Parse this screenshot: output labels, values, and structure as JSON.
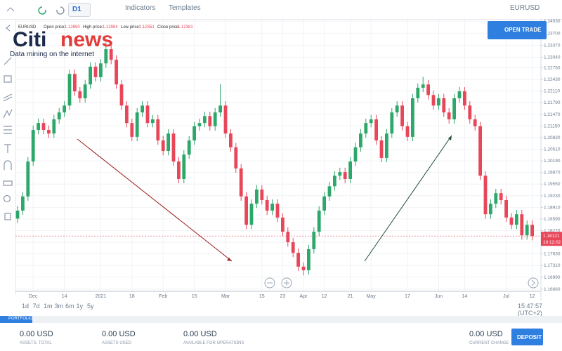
{
  "toolbar": {
    "timeframe": "D1",
    "indicators": "Indicators",
    "templates": "Templates",
    "symbol": "EURUSD",
    "open_trade": "OPEN TRADE"
  },
  "info": {
    "symbol": "EURUSD",
    "open_label": "Open price:",
    "open": "1.12850",
    "high_label": "High price:",
    "high": "1.12984",
    "low_label": "Low price:",
    "low": "1.12351",
    "close_label": "Close price:",
    "close": "1.12381"
  },
  "logo": {
    "brand1": "Citi",
    "brand2": "news",
    "tagline": "Data mining on the internet"
  },
  "ranges": [
    "1d",
    "7d",
    "1m",
    "3m",
    "6m",
    "1y",
    "5y"
  ],
  "clock": "15:47:57 (UTC+2)",
  "portfolio": "PORTFOLIO",
  "footer": {
    "items": [
      {
        "value": "0.00 USD",
        "label": "ASSETS, TOTAL"
      },
      {
        "value": "0.00 USD",
        "label": "ASSETS USED"
      },
      {
        "value": "0.00 USD",
        "label": "AVAILABLE FOR OPERATIONS"
      },
      {
        "value": "0.00 USD",
        "label": "CURRENT CHANGE"
      }
    ],
    "deposit": "DEPOSIT"
  },
  "chart_data": {
    "type": "candlestick",
    "up_color": "#2ea86a",
    "down_color": "#e8475a",
    "grid": true,
    "ylim": [
      1.166,
      1.2413
    ],
    "yticks": [
      {
        "value": 1.2403,
        "label": "1.24030"
      },
      {
        "value": 1.237,
        "label": "1.23700"
      },
      {
        "value": 1.2337,
        "label": "1.23370"
      },
      {
        "value": 1.2304,
        "label": "1.23040"
      },
      {
        "value": 1.2275,
        "label": "1.22750"
      },
      {
        "value": 1.2243,
        "label": "1.22430"
      },
      {
        "value": 1.2211,
        "label": "1.22110"
      },
      {
        "value": 1.2179,
        "label": "1.21790"
      },
      {
        "value": 1.2147,
        "label": "1.21470"
      },
      {
        "value": 1.2115,
        "label": "1.21150"
      },
      {
        "value": 1.2083,
        "label": "1.20830"
      },
      {
        "value": 1.2051,
        "label": "1.20510"
      },
      {
        "value": 1.2019,
        "label": "1.20190"
      },
      {
        "value": 1.1987,
        "label": "1.19870"
      },
      {
        "value": 1.1955,
        "label": "1.19550"
      },
      {
        "value": 1.1923,
        "label": "1.19230"
      },
      {
        "value": 1.1891,
        "label": "1.18910"
      },
      {
        "value": 1.1859,
        "label": "1.18590"
      },
      {
        "value": 1.1827,
        "label": "1.18270"
      },
      {
        "value": 1.1795,
        "label": "1.17950"
      },
      {
        "value": 1.1763,
        "label": "1.17630"
      },
      {
        "value": 1.1731,
        "label": "1.17310"
      },
      {
        "value": 1.1699,
        "label": "1.16990"
      },
      {
        "value": 1.1666,
        "label": "1.16660"
      }
    ],
    "last_price": {
      "value": 1.18121,
      "label": "1.18121"
    },
    "timer": "10:12:02",
    "categories": [
      null,
      null,
      null,
      "Dec",
      null,
      null,
      null,
      null,
      null,
      "14",
      null,
      null,
      null,
      null,
      null,
      null,
      "2021",
      null,
      null,
      null,
      null,
      null,
      "18",
      null,
      null,
      null,
      null,
      null,
      "Feb",
      null,
      null,
      null,
      null,
      null,
      "15",
      null,
      null,
      null,
      null,
      null,
      "Mar",
      null,
      null,
      null,
      null,
      null,
      null,
      "15",
      null,
      null,
      null,
      "23",
      null,
      null,
      null,
      "Apr",
      null,
      null,
      null,
      "12",
      null,
      null,
      null,
      null,
      "21",
      null,
      null,
      null,
      "May",
      null,
      null,
      null,
      null,
      null,
      null,
      "17",
      null,
      null,
      null,
      null,
      null,
      "Jun",
      null,
      null,
      null,
      null,
      "14",
      null,
      null,
      null,
      null,
      null,
      null,
      null,
      "Jul",
      null,
      null,
      null,
      null,
      "12"
    ],
    "candles": [
      [
        1.186,
        1.1894,
        1.1848,
        1.1882
      ],
      [
        1.1882,
        1.1933,
        1.187,
        1.1921
      ],
      [
        1.1921,
        1.2029,
        1.1909,
        1.2017
      ],
      [
        1.2017,
        1.2116,
        1.2005,
        1.2104
      ],
      [
        1.2104,
        1.2135,
        1.2092,
        1.2123
      ],
      [
        1.2123,
        1.2135,
        1.2092,
        1.2104
      ],
      [
        1.2104,
        1.2116,
        1.2082,
        1.2094
      ],
      [
        1.2094,
        1.2145,
        1.2082,
        1.2133
      ],
      [
        1.2133,
        1.2164,
        1.2121,
        1.2152
      ],
      [
        1.2152,
        1.2183,
        1.214,
        1.2171
      ],
      [
        1.2171,
        1.227,
        1.2159,
        1.2258
      ],
      [
        1.2258,
        1.227,
        1.2198,
        1.221
      ],
      [
        1.221,
        1.2222,
        1.2179,
        1.2191
      ],
      [
        1.2191,
        1.2241,
        1.2179,
        1.2229
      ],
      [
        1.2229,
        1.229,
        1.2217,
        1.2278
      ],
      [
        1.2278,
        1.229,
        1.2237,
        1.2249
      ],
      [
        1.2249,
        1.2299,
        1.2237,
        1.2287
      ],
      [
        1.2287,
        1.2345,
        1.2275,
        1.2326
      ],
      [
        1.2326,
        1.2338,
        1.2285,
        1.2297
      ],
      [
        1.2297,
        1.2309,
        1.2217,
        1.2229
      ],
      [
        1.2229,
        1.2241,
        1.2159,
        1.2171
      ],
      [
        1.2171,
        1.2183,
        1.2111,
        1.2123
      ],
      [
        1.2123,
        1.2135,
        1.2073,
        1.2085
      ],
      [
        1.2085,
        1.2164,
        1.2073,
        1.2152
      ],
      [
        1.2152,
        1.2183,
        1.214,
        1.2171
      ],
      [
        1.2171,
        1.2183,
        1.2111,
        1.2123
      ],
      [
        1.2123,
        1.2145,
        1.2111,
        1.2133
      ],
      [
        1.2133,
        1.2145,
        1.2063,
        1.2075
      ],
      [
        1.2075,
        1.2087,
        1.2034,
        1.2046
      ],
      [
        1.2046,
        1.2106,
        1.2034,
        1.2094
      ],
      [
        1.2094,
        1.2106,
        1.2005,
        1.2017
      ],
      [
        1.2017,
        1.2029,
        1.1957,
        1.1969
      ],
      [
        1.1969,
        1.2048,
        1.1957,
        1.2036
      ],
      [
        1.2036,
        1.2087,
        1.2024,
        1.2075
      ],
      [
        1.2075,
        1.2126,
        1.2063,
        1.2114
      ],
      [
        1.2114,
        1.2135,
        1.2102,
        1.2123
      ],
      [
        1.2123,
        1.2154,
        1.2111,
        1.2142
      ],
      [
        1.2142,
        1.2154,
        1.2102,
        1.2114
      ],
      [
        1.2114,
        1.2164,
        1.2102,
        1.2152
      ],
      [
        1.2152,
        1.223,
        1.214,
        1.2171
      ],
      [
        1.2171,
        1.2183,
        1.2082,
        1.2094
      ],
      [
        1.2094,
        1.2106,
        1.2044,
        1.2056
      ],
      [
        1.2056,
        1.2068,
        1.1986,
        1.1998
      ],
      [
        1.1998,
        1.201,
        1.1909,
        1.1921
      ],
      [
        1.1921,
        1.1933,
        1.1831,
        1.1843
      ],
      [
        1.1843,
        1.1913,
        1.1831,
        1.1901
      ],
      [
        1.1901,
        1.1952,
        1.1889,
        1.194
      ],
      [
        1.194,
        1.1952,
        1.1899,
        1.1911
      ],
      [
        1.1911,
        1.1923,
        1.187,
        1.1882
      ],
      [
        1.1882,
        1.1913,
        1.187,
        1.1901
      ],
      [
        1.1901,
        1.1913,
        1.1851,
        1.1863
      ],
      [
        1.1863,
        1.1875,
        1.1812,
        1.1824
      ],
      [
        1.1824,
        1.1836,
        1.1783,
        1.1795
      ],
      [
        1.1795,
        1.1807,
        1.1754,
        1.1766
      ],
      [
        1.1766,
        1.1778,
        1.1716,
        1.1728
      ],
      [
        1.1728,
        1.174,
        1.1704,
        1.1718
      ],
      [
        1.1718,
        1.1788,
        1.1706,
        1.1776
      ],
      [
        1.1776,
        1.1836,
        1.1764,
        1.1824
      ],
      [
        1.1824,
        1.1894,
        1.1812,
        1.1882
      ],
      [
        1.1882,
        1.1933,
        1.187,
        1.1921
      ],
      [
        1.1921,
        1.1961,
        1.1909,
        1.1949
      ],
      [
        1.1949,
        1.199,
        1.1937,
        1.1978
      ],
      [
        1.1978,
        1.2,
        1.1966,
        1.1988
      ],
      [
        1.1988,
        1.2,
        1.1957,
        1.1969
      ],
      [
        1.1969,
        1.2029,
        1.1957,
        1.2017
      ],
      [
        1.2017,
        1.2068,
        1.2005,
        1.2056
      ],
      [
        1.2056,
        1.2106,
        1.2044,
        1.2094
      ],
      [
        1.2094,
        1.2135,
        1.2082,
        1.2123
      ],
      [
        1.2123,
        1.2145,
        1.2111,
        1.2133
      ],
      [
        1.2133,
        1.2145,
        1.2063,
        1.2075
      ],
      [
        1.2075,
        1.2087,
        1.2015,
        1.2027
      ],
      [
        1.2027,
        1.2106,
        1.2015,
        1.2094
      ],
      [
        1.2094,
        1.2164,
        1.2082,
        1.2152
      ],
      [
        1.2152,
        1.2183,
        1.214,
        1.2171
      ],
      [
        1.2171,
        1.2183,
        1.2102,
        1.2114
      ],
      [
        1.2114,
        1.2126,
        1.2073,
        1.2085
      ],
      [
        1.2085,
        1.2203,
        1.2073,
        1.2191
      ],
      [
        1.2191,
        1.2232,
        1.2179,
        1.222
      ],
      [
        1.222,
        1.225,
        1.2208,
        1.2229
      ],
      [
        1.2229,
        1.2241,
        1.2188,
        1.22
      ],
      [
        1.22,
        1.2212,
        1.2159,
        1.2171
      ],
      [
        1.2171,
        1.2203,
        1.2159,
        1.2191
      ],
      [
        1.2191,
        1.2203,
        1.214,
        1.2152
      ],
      [
        1.2152,
        1.2164,
        1.2121,
        1.2133
      ],
      [
        1.2133,
        1.2203,
        1.2121,
        1.2191
      ],
      [
        1.2191,
        1.2222,
        1.2179,
        1.221
      ],
      [
        1.221,
        1.2222,
        1.2159,
        1.2171
      ],
      [
        1.2171,
        1.2183,
        1.2121,
        1.2133
      ],
      [
        1.2133,
        1.2145,
        1.2102,
        1.2114
      ],
      [
        1.2114,
        1.2126,
        1.1966,
        1.1978
      ],
      [
        1.1978,
        1.199,
        1.186,
        1.1872
      ],
      [
        1.1872,
        1.1913,
        1.186,
        1.1901
      ],
      [
        1.1901,
        1.1942,
        1.1889,
        1.193
      ],
      [
        1.193,
        1.1942,
        1.1899,
        1.1911
      ],
      [
        1.1911,
        1.1923,
        1.1851,
        1.1863
      ],
      [
        1.1863,
        1.1875,
        1.1831,
        1.1843
      ],
      [
        1.1843,
        1.1884,
        1.1831,
        1.1872
      ],
      [
        1.1872,
        1.1884,
        1.1802,
        1.1814
      ],
      [
        1.1814,
        1.1855,
        1.1802,
        1.1843
      ],
      [
        1.1843,
        1.1855,
        1.18,
        1.18121
      ]
    ]
  }
}
